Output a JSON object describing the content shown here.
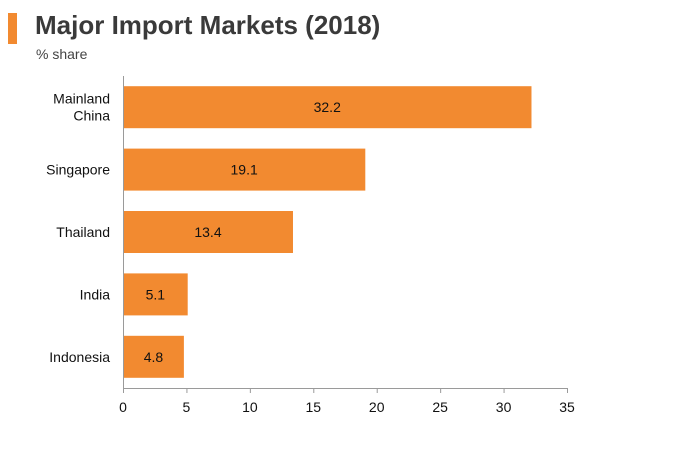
{
  "header": {
    "title": "Major Import Markets (2018)",
    "subtitle": "% share",
    "accent_color": "#f28a30"
  },
  "chart_data": {
    "type": "bar",
    "orientation": "horizontal",
    "title": "Major Import Markets (2018)",
    "subtitle": "% share",
    "categories": [
      [
        "Mainland",
        "China"
      ],
      [
        "Singapore"
      ],
      [
        "Thailand"
      ],
      [
        "India"
      ],
      [
        "Indonesia"
      ]
    ],
    "values": [
      32.2,
      19.1,
      13.4,
      5.1,
      4.8
    ],
    "data_labels": [
      "32.2",
      "19.1",
      "13.4",
      "5.1",
      "4.8"
    ],
    "xlim": [
      0,
      35
    ],
    "xticks": [
      0,
      5,
      10,
      15,
      20,
      25,
      30,
      35
    ],
    "bar_color": "#f28a30",
    "grid": false,
    "legend": "none"
  }
}
